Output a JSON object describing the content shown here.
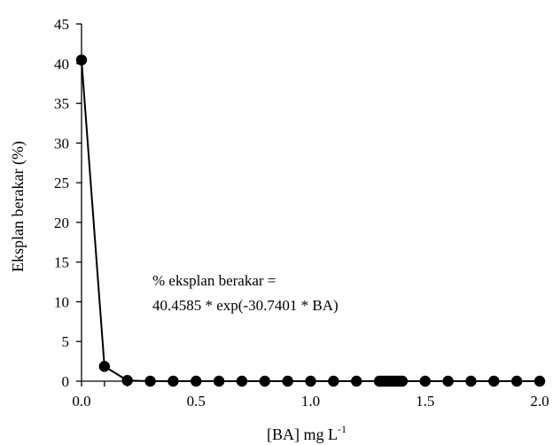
{
  "chart_data": {
    "type": "scatter",
    "title": "",
    "xlabel": "[BA] mg L",
    "xlabel_superscript": "-1",
    "ylabel": "Eksplan berakar (%)",
    "xlim": [
      0,
      2.0
    ],
    "ylim": [
      0,
      45
    ],
    "x_ticks": [
      "0.0",
      "0.5",
      "1.0",
      "1.5",
      "2.0"
    ],
    "x_tick_values": [
      0,
      0.5,
      1.0,
      1.5,
      2.0
    ],
    "x_minor_step": 0.1,
    "y_ticks": [
      "0",
      "5",
      "10",
      "15",
      "20",
      "25",
      "30",
      "35",
      "40",
      "45"
    ],
    "y_tick_values": [
      0,
      5,
      10,
      15,
      20,
      25,
      30,
      35,
      40,
      45
    ],
    "grid": false,
    "legend": "none",
    "series": [
      {
        "color": "#000000",
        "marker": "circle",
        "line": true,
        "x": [
          0.0,
          0.1,
          0.2,
          0.3,
          0.4,
          0.5,
          0.6,
          0.7,
          0.8,
          0.9,
          1.0,
          1.1,
          1.2,
          1.3,
          1.31,
          1.32,
          1.33,
          1.34,
          1.35,
          1.36,
          1.37,
          1.38,
          1.39,
          1.4,
          1.5,
          1.6,
          1.7,
          1.8,
          1.9,
          2.0
        ],
        "y": [
          40.4585,
          1.86,
          0.087,
          0.004,
          0.0,
          0.0,
          0.0,
          0.0,
          0.0,
          0.0,
          0.0,
          0.0,
          0.0,
          0.0,
          0.0,
          0.0,
          0.0,
          0.0,
          0.0,
          0.0,
          0.0,
          0.0,
          0.0,
          0.0,
          0.0,
          0.0,
          0.0,
          0.0,
          0.0,
          0.0
        ]
      }
    ],
    "annotation": {
      "line1": "% eksplan berakar =",
      "line2": "40.4585 * exp(-30.7401 * BA)"
    }
  }
}
